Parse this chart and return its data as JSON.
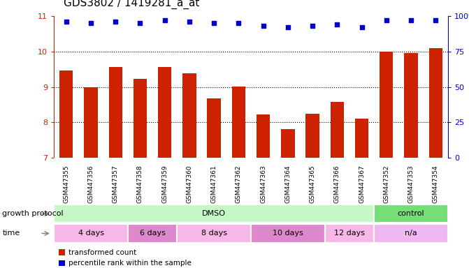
{
  "title": "GDS3802 / 1419281_a_at",
  "samples": [
    "GSM447355",
    "GSM447356",
    "GSM447357",
    "GSM447358",
    "GSM447359",
    "GSM447360",
    "GSM447361",
    "GSM447362",
    "GSM447363",
    "GSM447364",
    "GSM447365",
    "GSM447366",
    "GSM447367",
    "GSM447352",
    "GSM447353",
    "GSM447354"
  ],
  "bar_values": [
    9.46,
    9.0,
    9.56,
    9.22,
    9.57,
    9.38,
    8.67,
    9.02,
    8.22,
    7.82,
    8.25,
    8.57,
    8.1,
    10.0,
    9.95,
    10.1
  ],
  "percentile_values": [
    96,
    95,
    96,
    95,
    97,
    96,
    95,
    95,
    93,
    92,
    93,
    94,
    92,
    97,
    97,
    97
  ],
  "bar_color": "#cc2200",
  "percentile_color": "#0000cc",
  "ylim_left": [
    7,
    11
  ],
  "ylim_right": [
    0,
    100
  ],
  "yticks_left": [
    7,
    8,
    9,
    10,
    11
  ],
  "yticks_right": [
    0,
    25,
    50,
    75,
    100
  ],
  "background_color": "#ffffff",
  "growth_protocol_data": [
    {
      "label": "DMSO",
      "start": 0,
      "end": 13,
      "color": "#c6f7c6"
    },
    {
      "label": "control",
      "start": 13,
      "end": 16,
      "color": "#77dd77"
    }
  ],
  "time_data": [
    {
      "label": "4 days",
      "start": 0,
      "end": 3,
      "color": "#f7b8e8"
    },
    {
      "label": "6 days",
      "start": 3,
      "end": 5,
      "color": "#dd88cc"
    },
    {
      "label": "8 days",
      "start": 5,
      "end": 8,
      "color": "#f7b8e8"
    },
    {
      "label": "10 days",
      "start": 8,
      "end": 11,
      "color": "#dd88cc"
    },
    {
      "label": "12 days",
      "start": 11,
      "end": 13,
      "color": "#f7b8e8"
    },
    {
      "label": "n/a",
      "start": 13,
      "end": 16,
      "color": "#f0b8f0"
    }
  ],
  "legend_bar_label": "transformed count",
  "legend_percentile_label": "percentile rank within the sample",
  "title_fontsize": 11,
  "tick_fontsize": 8,
  "sample_fontsize": 6.5,
  "row_label_fontsize": 8,
  "annot_fontsize": 8
}
